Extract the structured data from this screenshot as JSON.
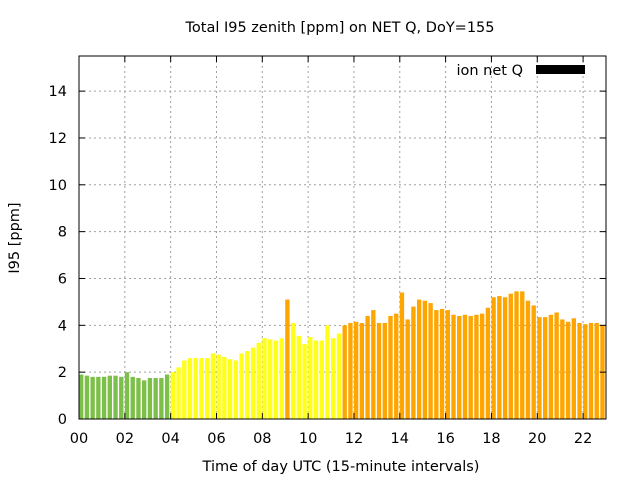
{
  "chart_data": {
    "type": "bar",
    "title": "Total I95 zenith [ppm] on NET Q, DoY=155",
    "xlabel": "Time of day UTC (15-minute intervals)",
    "ylabel": "I95 [ppm]",
    "xlim": [
      0,
      23
    ],
    "ylim": [
      0,
      15.5
    ],
    "xticks": [
      "00",
      "02",
      "04",
      "06",
      "08",
      "10",
      "12",
      "14",
      "16",
      "18",
      "20",
      "22"
    ],
    "xtick_values": [
      0,
      2,
      4,
      6,
      8,
      10,
      12,
      14,
      16,
      18,
      20,
      22
    ],
    "yticks": [
      "0",
      "2",
      "4",
      "6",
      "8",
      "10",
      "12",
      "14"
    ],
    "ytick_values": [
      0,
      2,
      4,
      6,
      8,
      10,
      12,
      14
    ],
    "grid": true,
    "legend": {
      "position": "top-right",
      "label": "ion net Q",
      "color": "#000000"
    },
    "bar_width_hours": 0.19,
    "level_colors": {
      "green": "#7cc04a",
      "yellow": "#ffff1a",
      "orange": "#ffa500"
    },
    "x": [
      0.0,
      0.25,
      0.5,
      0.75,
      1.0,
      1.25,
      1.5,
      1.75,
      2.0,
      2.25,
      2.5,
      2.75,
      3.0,
      3.25,
      3.5,
      3.75,
      4.0,
      4.25,
      4.5,
      4.75,
      5.0,
      5.25,
      5.5,
      5.75,
      6.0,
      6.25,
      6.5,
      6.75,
      7.0,
      7.25,
      7.5,
      7.75,
      8.0,
      8.25,
      8.5,
      8.75,
      9.0,
      9.25,
      9.5,
      9.75,
      10.0,
      10.25,
      10.5,
      10.75,
      11.0,
      11.25,
      11.5,
      11.75,
      12.0,
      12.25,
      12.5,
      12.75,
      13.0,
      13.25,
      13.5,
      13.75,
      14.0,
      14.25,
      14.5,
      14.75,
      15.0,
      15.25,
      15.5,
      15.75,
      16.0,
      16.25,
      16.5,
      16.75,
      17.0,
      17.25,
      17.5,
      17.75,
      18.0,
      18.25,
      18.5,
      18.75,
      19.0,
      19.25,
      19.5,
      19.75,
      20.0,
      20.25,
      20.5,
      20.75,
      21.0,
      21.25,
      21.5,
      21.75,
      22.0,
      22.25,
      22.5,
      22.75
    ],
    "values": [
      1.9,
      1.85,
      1.8,
      1.8,
      1.8,
      1.85,
      1.85,
      1.8,
      2.0,
      1.8,
      1.75,
      1.65,
      1.75,
      1.75,
      1.75,
      1.9,
      2.0,
      2.2,
      2.5,
      2.6,
      2.6,
      2.6,
      2.6,
      2.8,
      2.75,
      2.65,
      2.55,
      2.5,
      2.8,
      2.9,
      3.05,
      3.25,
      3.45,
      3.4,
      3.35,
      3.45,
      5.1,
      4.1,
      3.55,
      3.2,
      3.5,
      3.35,
      3.35,
      4.0,
      3.45,
      3.65,
      4.0,
      4.1,
      4.15,
      4.1,
      4.4,
      4.65,
      4.1,
      4.1,
      4.4,
      4.5,
      5.4,
      4.25,
      4.8,
      5.1,
      5.05,
      4.95,
      4.65,
      4.7,
      4.65,
      4.45,
      4.4,
      4.45,
      4.4,
      4.45,
      4.5,
      4.75,
      5.2,
      5.25,
      5.2,
      5.35,
      5.45,
      5.45,
      5.05,
      4.85,
      4.35,
      4.35,
      4.45,
      4.55,
      4.25,
      4.15,
      4.3,
      4.1,
      4.05,
      4.1,
      4.1,
      4.0
    ],
    "bar_colors": [
      "green",
      "green",
      "green",
      "green",
      "green",
      "green",
      "green",
      "green",
      "green",
      "green",
      "green",
      "green",
      "green",
      "green",
      "green",
      "green",
      "yellow",
      "yellow",
      "yellow",
      "yellow",
      "yellow",
      "yellow",
      "yellow",
      "yellow",
      "yellow",
      "yellow",
      "yellow",
      "yellow",
      "yellow",
      "yellow",
      "yellow",
      "yellow",
      "yellow",
      "yellow",
      "yellow",
      "yellow",
      "orange",
      "yellow",
      "yellow",
      "yellow",
      "yellow",
      "yellow",
      "yellow",
      "yellow",
      "yellow",
      "yellow",
      "orange",
      "orange",
      "orange",
      "orange",
      "orange",
      "orange",
      "orange",
      "orange",
      "orange",
      "orange",
      "orange",
      "orange",
      "orange",
      "orange",
      "orange",
      "orange",
      "orange",
      "orange",
      "orange",
      "orange",
      "orange",
      "orange",
      "orange",
      "orange",
      "orange",
      "orange",
      "orange",
      "orange",
      "orange",
      "orange",
      "orange",
      "orange",
      "orange",
      "orange",
      "orange",
      "orange",
      "orange",
      "orange",
      "orange",
      "orange",
      "orange",
      "orange",
      "orange",
      "orange",
      "orange",
      "orange"
    ]
  }
}
